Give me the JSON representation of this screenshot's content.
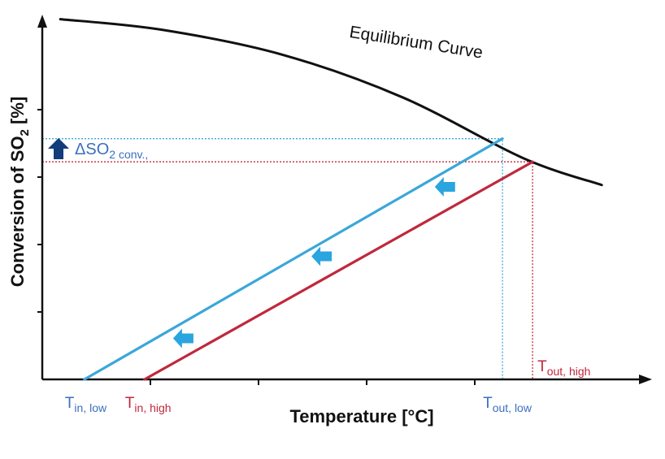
{
  "colors": {
    "axis": "#111111",
    "equilibrium": "#111111",
    "low": "#3aa7d9",
    "high": "#c0283c",
    "low_text": "#3a6fbf",
    "high_text": "#c0283c",
    "up_arrow": "#123c7a",
    "left_arrow": "#2aa5df"
  },
  "chart_data": {
    "type": "line",
    "xlabel": "Temperature [°C]",
    "ylabel": {
      "main": "Conversion of SO",
      "sub": "2",
      "tail": " [%]"
    },
    "xlim": [
      0,
      10
    ],
    "ylim": [
      0,
      10
    ],
    "tick_labels_shown": false,
    "grid": false,
    "series": [
      {
        "name": "Equilibrium Curve",
        "color_key": "equilibrium",
        "x": [
          0.3,
          2.0,
          4.0,
          6.0,
          8.0,
          9.3
        ],
        "y": [
          10.1,
          9.8,
          9.1,
          7.9,
          6.2,
          5.45
        ]
      },
      {
        "key": "low",
        "color_key": "low",
        "x": [
          0.7,
          7.65
        ],
        "y": [
          0.0,
          6.75
        ]
      },
      {
        "key": "high",
        "color_key": "high",
        "x": [
          1.7,
          8.15
        ],
        "y": [
          0.0,
          6.1
        ]
      }
    ],
    "reference_lines": [
      {
        "color_key": "low",
        "from": [
          0,
          6.75
        ],
        "corner": [
          7.65,
          6.75
        ],
        "to": [
          7.65,
          0
        ]
      },
      {
        "color_key": "high",
        "from": [
          0,
          6.1
        ],
        "corner": [
          8.15,
          6.1
        ],
        "to": [
          8.15,
          0
        ]
      }
    ],
    "annotations": {
      "equilibrium": {
        "text": "Equilibrium Curve",
        "x": 6.2,
        "y": 9.3
      },
      "delta": {
        "main": "ΔSO",
        "sub": "2 conv.,",
        "color_key": "low_text"
      },
      "t_in_low": {
        "main": "T",
        "sub": "in, low",
        "color_key": "low_text",
        "x": 0.7
      },
      "t_in_high": {
        "main": "T",
        "sub": "in, high",
        "color_key": "high_text",
        "x": 1.7
      },
      "t_out_low": {
        "main": "T",
        "sub": "out, low",
        "color_key": "low_text",
        "x": 7.65
      },
      "t_out_high": {
        "main": "T",
        "sub": "out, high",
        "color_key": "high_text",
        "x": 8.15
      }
    },
    "shift_arrows": [
      {
        "x": 2.35,
        "y": 1.15
      },
      {
        "x": 4.65,
        "y": 3.45
      },
      {
        "x": 6.7,
        "y": 5.4
      }
    ]
  }
}
